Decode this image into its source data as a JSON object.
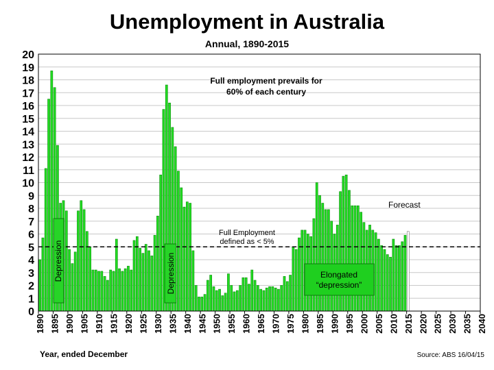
{
  "title": "Unemployment in Australia",
  "subtitle": "Annual, 1890-2015",
  "xlabel": "Year, ended December",
  "source": "Source: ABS  16/04/15",
  "annotations": {
    "full_employment": "Full employment prevails for\n60% of each century",
    "forecast": "Forecast",
    "full_employment_def": "Full Employment\ndefined as < 5%",
    "depression": "Depression",
    "elongated": "Elongated\n“depression”"
  },
  "colors": {
    "bar": "#22dd22",
    "bar_stroke": "#0d8a0d",
    "forecast_bar": "#ffffff",
    "elongated_box": "#1fcf1f",
    "grid": "#c8c8c8"
  },
  "chart_data": {
    "type": "bar",
    "title": "Unemployment in Australia",
    "subtitle": "Annual, 1890-2015",
    "xlabel": "Year, ended December",
    "ylabel": "",
    "xlim": [
      1890,
      2040
    ],
    "ylim": [
      0,
      20
    ],
    "grid": true,
    "threshold": 5,
    "x": [
      1890,
      1891,
      1892,
      1893,
      1894,
      1895,
      1896,
      1897,
      1898,
      1899,
      1900,
      1901,
      1902,
      1903,
      1904,
      1905,
      1906,
      1907,
      1908,
      1909,
      1910,
      1911,
      1912,
      1913,
      1914,
      1915,
      1916,
      1917,
      1918,
      1919,
      1920,
      1921,
      1922,
      1923,
      1924,
      1925,
      1926,
      1927,
      1928,
      1929,
      1930,
      1931,
      1932,
      1933,
      1934,
      1935,
      1936,
      1937,
      1938,
      1939,
      1940,
      1941,
      1942,
      1943,
      1944,
      1945,
      1946,
      1947,
      1948,
      1949,
      1950,
      1951,
      1952,
      1953,
      1954,
      1955,
      1956,
      1957,
      1958,
      1959,
      1960,
      1961,
      1962,
      1963,
      1964,
      1965,
      1966,
      1967,
      1968,
      1969,
      1970,
      1971,
      1972,
      1973,
      1974,
      1975,
      1976,
      1977,
      1978,
      1979,
      1980,
      1981,
      1982,
      1983,
      1984,
      1985,
      1986,
      1987,
      1988,
      1989,
      1990,
      1991,
      1992,
      1993,
      1994,
      1995,
      1996,
      1997,
      1998,
      1999,
      2000,
      2001,
      2002,
      2003,
      2004,
      2005,
      2006,
      2007,
      2008,
      2009,
      2010,
      2011,
      2012,
      2013,
      2014,
      2015
    ],
    "values": [
      4.0,
      5.7,
      11.1,
      16.5,
      18.7,
      17.4,
      12.9,
      8.4,
      8.6,
      7.8,
      4.8,
      3.7,
      4.6,
      7.8,
      8.6,
      7.9,
      6.2,
      5.0,
      3.2,
      3.2,
      3.1,
      3.1,
      2.7,
      2.4,
      3.2,
      3.1,
      5.6,
      3.3,
      3.1,
      3.3,
      3.5,
      3.2,
      5.5,
      5.8,
      4.9,
      4.5,
      5.2,
      4.7,
      4.3,
      5.9,
      7.4,
      10.6,
      15.7,
      17.6,
      16.2,
      14.3,
      12.8,
      10.9,
      9.6,
      8.1,
      8.5,
      8.4,
      4.7,
      2.0,
      1.1,
      1.1,
      1.3,
      2.4,
      2.8,
      1.9,
      1.6,
      1.7,
      1.2,
      1.4,
      2.9,
      2.0,
      1.5,
      1.6,
      2.0,
      2.6,
      2.6,
      2.1,
      3.2,
      2.4,
      2.0,
      1.7,
      1.6,
      1.8,
      1.9,
      1.9,
      1.8,
      1.7,
      2.0,
      2.7,
      2.3,
      2.8,
      5.0,
      4.8,
      5.7,
      6.3,
      6.3,
      6.0,
      5.8,
      7.2,
      10.0,
      9.0,
      8.4,
      7.9,
      7.9,
      7.0,
      6.0,
      6.7,
      9.3,
      10.5,
      10.6,
      9.4,
      8.2,
      8.2,
      8.2,
      7.7,
      6.9,
      6.3,
      6.7,
      6.3,
      6.1,
      5.6,
      5.1,
      4.8,
      4.4,
      4.2,
      5.6,
      5.1,
      5.1,
      5.4,
      5.9,
      6.2
    ],
    "forecast_from": 2015
  }
}
